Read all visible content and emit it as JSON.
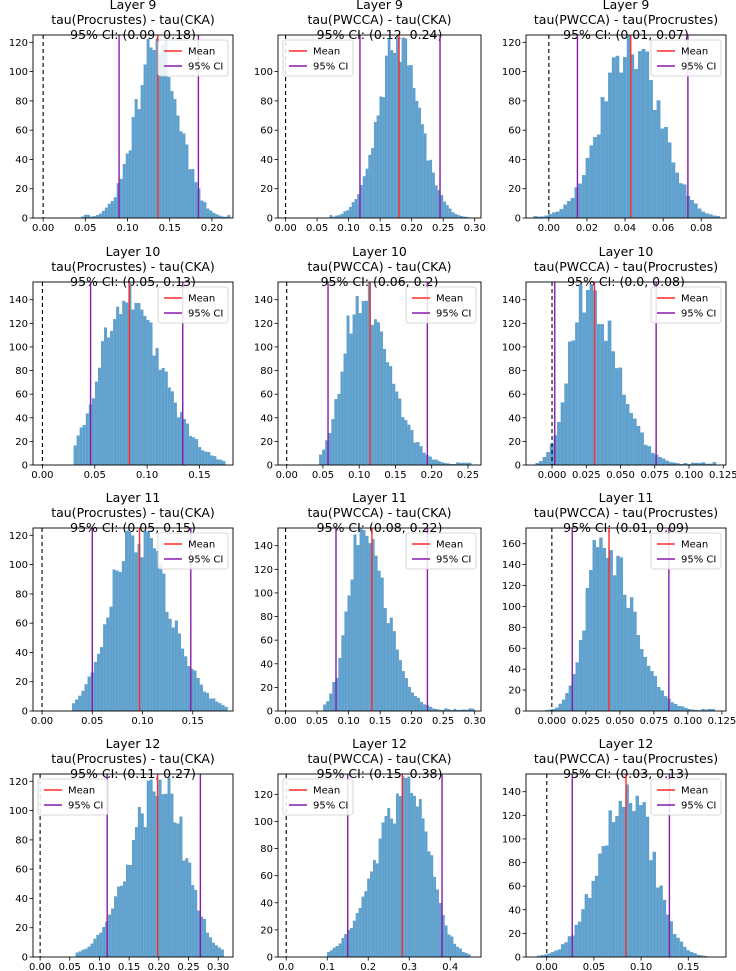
{
  "chart_data": [
    {
      "type": "bar",
      "title": [
        "Layer 9",
        "tau(Procrustes) - tau(CKA)",
        "95% CI: (0.09, 0.18)"
      ],
      "xlim": [
        -0.012,
        0.225
      ],
      "ylim": [
        0,
        125
      ],
      "xticks": [
        0.0,
        0.05,
        0.1,
        0.15,
        0.2
      ],
      "xtick_labels": [
        "0.00",
        "0.05",
        "0.10",
        "0.15",
        "0.20"
      ],
      "yticks": [
        0,
        20,
        40,
        60,
        80,
        100,
        120
      ],
      "hist_range": [
        0.045,
        0.222
      ],
      "mean": 0.136,
      "mu": 0.136,
      "sigma": 0.025,
      "peak": 120,
      "skew": 0,
      "ci": [
        0.09,
        0.184
      ],
      "legend_position": "top-right",
      "legend": [
        "Mean",
        "95% CI"
      ]
    },
    {
      "type": "bar",
      "title": [
        "Layer 9",
        "tau(PWCCA) - tau(CKA)",
        "95% CI: (0.12, 0.24)"
      ],
      "xlim": [
        -0.012,
        0.31
      ],
      "ylim": [
        0,
        125
      ],
      "xticks": [
        0.0,
        0.05,
        0.1,
        0.15,
        0.2,
        0.25,
        0.3
      ],
      "xtick_labels": [
        "0.00",
        "0.05",
        "0.10",
        "0.15",
        "0.20",
        "0.25",
        "0.30"
      ],
      "yticks": [
        0,
        20,
        40,
        60,
        80,
        100
      ],
      "hist_range": [
        0.07,
        0.29
      ],
      "mean": 0.18,
      "mu": 0.18,
      "sigma": 0.033,
      "peak": 120,
      "skew": 0,
      "ci": [
        0.118,
        0.245
      ],
      "legend_position": "top-left",
      "legend": [
        "Mean",
        "95% CI"
      ]
    },
    {
      "type": "bar",
      "title": [
        "Layer 9",
        "tau(PWCCA) - tau(Procrustes)",
        "95% CI: (0.01, 0.07)"
      ],
      "xlim": [
        -0.012,
        0.093
      ],
      "ylim": [
        0,
        125
      ],
      "xticks": [
        0.0,
        0.02,
        0.04,
        0.06,
        0.08
      ],
      "xtick_labels": [
        "0.00",
        "0.02",
        "0.04",
        "0.06",
        "0.08"
      ],
      "yticks": [
        0,
        20,
        40,
        60,
        80,
        100,
        120
      ],
      "hist_range": [
        -0.008,
        0.09
      ],
      "mean": 0.043,
      "mu": 0.043,
      "sigma": 0.015,
      "peak": 120,
      "skew": 0,
      "ci": [
        0.015,
        0.073
      ],
      "legend_position": "top-right",
      "legend": [
        "Mean",
        "95% CI"
      ]
    },
    {
      "type": "bar",
      "title": [
        "Layer 10",
        "tau(Procrustes) - tau(CKA)",
        "95% CI: (0.05, 0.13)"
      ],
      "xlim": [
        -0.009,
        0.182
      ],
      "ylim": [
        0,
        155
      ],
      "xticks": [
        0.0,
        0.05,
        0.1,
        0.15
      ],
      "xtick_labels": [
        "0.00",
        "0.05",
        "0.10",
        "0.15"
      ],
      "yticks": [
        0,
        20,
        40,
        60,
        80,
        100,
        120,
        140
      ],
      "hist_range": [
        0.03,
        0.175
      ],
      "mean": 0.083,
      "mu": 0.077,
      "sigma": 0.022,
      "peak": 145,
      "skew": 0.6,
      "ci": [
        0.046,
        0.134
      ],
      "legend_position": "top-right",
      "legend": [
        "Mean",
        "95% CI"
      ]
    },
    {
      "type": "bar",
      "title": [
        "Layer 10",
        "tau(PWCCA) - tau(CKA)",
        "95% CI: (0.06, 0.2)"
      ],
      "xlim": [
        -0.012,
        0.268
      ],
      "ylim": [
        0,
        155
      ],
      "xticks": [
        0.0,
        0.05,
        0.1,
        0.15,
        0.2,
        0.25
      ],
      "xtick_labels": [
        "0.00",
        "0.05",
        "0.10",
        "0.15",
        "0.20",
        "0.25"
      ],
      "yticks": [
        0,
        20,
        40,
        60,
        80,
        100,
        120,
        140
      ],
      "hist_range": [
        0.045,
        0.255
      ],
      "mean": 0.115,
      "mu": 0.1,
      "sigma": 0.022,
      "peak": 145,
      "skew": 0.8,
      "ci": [
        0.057,
        0.194
      ],
      "legend_position": "top-right",
      "legend": [
        "Mean",
        "95% CI"
      ]
    },
    {
      "type": "bar",
      "title": [
        "Layer 10",
        "tau(PWCCA) - tau(Procrustes)",
        "95% CI: (0.0, 0.08)"
      ],
      "xlim": [
        -0.019,
        0.127
      ],
      "ylim": [
        0,
        155
      ],
      "xticks": [
        0.0,
        0.025,
        0.05,
        0.075,
        0.1,
        0.125
      ],
      "xtick_labels": [
        "0.000",
        "0.025",
        "0.050",
        "0.075",
        "0.100",
        "0.125"
      ],
      "yticks": [
        0,
        20,
        40,
        60,
        80,
        100,
        120,
        140
      ],
      "hist_range": [
        -0.012,
        0.12
      ],
      "mean": 0.031,
      "mu": 0.025,
      "sigma": 0.012,
      "peak": 150,
      "skew": 0.8,
      "ci": [
        0.002,
        0.076
      ],
      "legend_position": "top-right",
      "legend": [
        "Mean",
        "95% CI"
      ]
    },
    {
      "type": "bar",
      "title": [
        "Layer 11",
        "tau(Procrustes) - tau(CKA)",
        "95% CI: (0.05, 0.15)"
      ],
      "xlim": [
        -0.009,
        0.19
      ],
      "ylim": [
        0,
        125
      ],
      "xticks": [
        0.0,
        0.05,
        0.1,
        0.15
      ],
      "xtick_labels": [
        "0.00",
        "0.05",
        "0.10",
        "0.15"
      ],
      "yticks": [
        0,
        20,
        40,
        60,
        80,
        100,
        120
      ],
      "hist_range": [
        0.03,
        0.185
      ],
      "mean": 0.097,
      "mu": 0.092,
      "sigma": 0.024,
      "peak": 122,
      "skew": 0.4,
      "ci": [
        0.05,
        0.148
      ],
      "legend_position": "top-right",
      "legend": [
        "Mean",
        "95% CI"
      ]
    },
    {
      "type": "bar",
      "title": [
        "Layer 11",
        "tau(PWCCA) - tau(CKA)",
        "95% CI: (0.08, 0.22)"
      ],
      "xlim": [
        -0.012,
        0.31
      ],
      "ylim": [
        0,
        155
      ],
      "xticks": [
        0.0,
        0.05,
        0.1,
        0.15,
        0.2,
        0.25,
        0.3
      ],
      "xtick_labels": [
        "0.00",
        "0.05",
        "0.10",
        "0.15",
        "0.20",
        "0.25",
        "0.30"
      ],
      "yticks": [
        0,
        20,
        40,
        60,
        80,
        100,
        120,
        140
      ],
      "hist_range": [
        0.06,
        0.3
      ],
      "mean": 0.137,
      "mu": 0.12,
      "sigma": 0.022,
      "peak": 148,
      "skew": 0.8,
      "ci": [
        0.08,
        0.225
      ],
      "legend_position": "top-right",
      "legend": [
        "Mean",
        "95% CI"
      ]
    },
    {
      "type": "bar",
      "title": [
        "Layer 11",
        "tau(PWCCA) - tau(Procrustes)",
        "95% CI: (0.01, 0.09)"
      ],
      "xlim": [
        -0.019,
        0.128
      ],
      "ylim": [
        0,
        175
      ],
      "xticks": [
        0.0,
        0.025,
        0.05,
        0.075,
        0.1,
        0.125
      ],
      "xtick_labels": [
        "0.000",
        "0.025",
        "0.050",
        "0.075",
        "0.100",
        "0.125"
      ],
      "yticks": [
        0,
        20,
        40,
        60,
        80,
        100,
        120,
        140,
        160
      ],
      "hist_range": [
        -0.005,
        0.12
      ],
      "mean": 0.042,
      "mu": 0.037,
      "sigma": 0.012,
      "peak": 162,
      "skew": 0.8,
      "ci": [
        0.015,
        0.086
      ],
      "legend_position": "top-right",
      "legend": [
        "Mean",
        "95% CI"
      ]
    },
    {
      "type": "bar",
      "title": [
        "Layer 12",
        "tau(Procrustes) - tau(CKA)",
        "95% CI: (0.11, 0.27)"
      ],
      "xlim": [
        -0.012,
        0.325
      ],
      "ylim": [
        0,
        125
      ],
      "xticks": [
        0.0,
        0.05,
        0.1,
        0.15,
        0.2,
        0.25,
        0.3
      ],
      "xtick_labels": [
        "0.00",
        "0.05",
        "0.10",
        "0.15",
        "0.20",
        "0.25",
        "0.30"
      ],
      "yticks": [
        0,
        20,
        40,
        60,
        80,
        100,
        120
      ],
      "hist_range": [
        0.06,
        0.31
      ],
      "mean": 0.198,
      "mu": 0.205,
      "sigma": 0.04,
      "peak": 118,
      "skew": -0.3,
      "ci": [
        0.113,
        0.27
      ],
      "legend_position": "top-left",
      "legend": [
        "Mean",
        "95% CI"
      ]
    },
    {
      "type": "bar",
      "title": [
        "Layer 12",
        "tau(PWCCA) - tau(CKA)",
        "95% CI: (0.15, 0.38)"
      ],
      "xlim": [
        -0.02,
        0.475
      ],
      "ylim": [
        0,
        135
      ],
      "xticks": [
        0.0,
        0.1,
        0.2,
        0.3,
        0.4
      ],
      "xtick_labels": [
        "0.0",
        "0.1",
        "0.2",
        "0.3",
        "0.4"
      ],
      "yticks": [
        0,
        20,
        40,
        60,
        80,
        100,
        120
      ],
      "hist_range": [
        0.1,
        0.45
      ],
      "mean": 0.283,
      "mu": 0.3,
      "sigma": 0.05,
      "peak": 125,
      "skew": -0.5,
      "ci": [
        0.15,
        0.38
      ],
      "legend_position": "top-left",
      "legend": [
        "Mean",
        "95% CI"
      ]
    },
    {
      "type": "bar",
      "title": [
        "Layer 12",
        "tau(PWCCA) - tau(Procrustes)",
        "95% CI: (0.03, 0.13)"
      ],
      "xlim": [
        -0.022,
        0.19
      ],
      "ylim": [
        0,
        155
      ],
      "xticks": [
        0.0,
        0.05,
        0.1,
        0.15
      ],
      "xtick_labels": [
        "0.00",
        "0.05",
        "0.10",
        "0.15"
      ],
      "yticks": [
        0,
        20,
        40,
        60,
        80,
        100,
        120,
        140
      ],
      "hist_range": [
        -0.01,
        0.17
      ],
      "mean": 0.084,
      "mu": 0.087,
      "sigma": 0.025,
      "peak": 145,
      "skew": -0.2,
      "ci": [
        0.027,
        0.13
      ],
      "legend_position": "top-right",
      "legend": [
        "Mean",
        "95% CI"
      ]
    }
  ],
  "colors": {
    "bar": "#5fa2cf",
    "bar_edge": "#4c8fbf",
    "mean": "#ff2a2a",
    "ci": "#8a1aaa",
    "zero": "#000000"
  }
}
